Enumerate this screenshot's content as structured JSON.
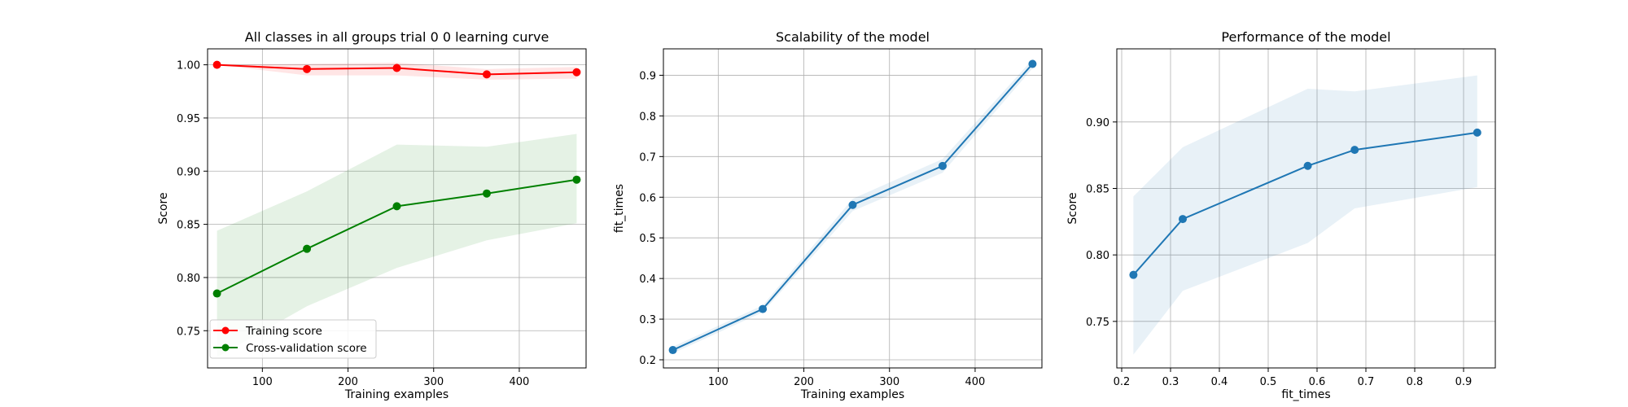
{
  "chart_data": [
    {
      "type": "line",
      "title": "All classes in all groups trial 0 0 learning curve",
      "xlabel": "Training examples",
      "ylabel": "Score",
      "xlim": [
        36,
        478
      ],
      "ylim": [
        0.715,
        1.015
      ],
      "xticks": [
        100,
        200,
        300,
        400
      ],
      "yticks": [
        0.75,
        0.8,
        0.85,
        0.9,
        0.95,
        1.0
      ],
      "ytick_labels": [
        "0.75",
        "0.80",
        "0.85",
        "0.90",
        "0.95",
        "1.00"
      ],
      "grid": true,
      "legend_position": "lower-left",
      "x": [
        47,
        152,
        257,
        362,
        467
      ],
      "series": [
        {
          "name": "Training score",
          "color": "#ff0000",
          "values": [
            1.0,
            0.996,
            0.997,
            0.991,
            0.993
          ],
          "band_lower": [
            1.0,
            0.99,
            0.99,
            0.986,
            0.987
          ],
          "band_upper": [
            1.0,
            1.001,
            1.002,
            0.996,
            0.998
          ]
        },
        {
          "name": "Cross-validation score",
          "color": "#008000",
          "values": [
            0.785,
            0.827,
            0.867,
            0.879,
            0.892
          ],
          "band_lower": [
            0.725,
            0.773,
            0.809,
            0.835,
            0.851
          ],
          "band_upper": [
            0.844,
            0.881,
            0.925,
            0.923,
            0.935
          ]
        }
      ]
    },
    {
      "type": "line",
      "title": "Scalability of the model",
      "xlabel": "Training examples",
      "ylabel": "fit_times",
      "xlim": [
        36,
        478
      ],
      "ylim": [
        0.18,
        0.965
      ],
      "xticks": [
        100,
        200,
        300,
        400
      ],
      "yticks": [
        0.2,
        0.3,
        0.4,
        0.5,
        0.6,
        0.7,
        0.8,
        0.9
      ],
      "ytick_labels": [
        "0.2",
        "0.3",
        "0.4",
        "0.5",
        "0.6",
        "0.7",
        "0.8",
        "0.9"
      ],
      "grid": true,
      "x": [
        47,
        152,
        257,
        362,
        467
      ],
      "series": [
        {
          "color": "#1f77b4",
          "values": [
            0.224,
            0.325,
            0.581,
            0.677,
            0.928
          ],
          "band_lower": [
            0.216,
            0.317,
            0.566,
            0.66,
            0.917
          ],
          "band_upper": [
            0.232,
            0.334,
            0.596,
            0.694,
            0.939
          ]
        }
      ]
    },
    {
      "type": "line",
      "title": "Performance of the model",
      "xlabel": "fit_times",
      "ylabel": "Score",
      "xlim": [
        0.19,
        0.965
      ],
      "ylim": [
        0.715,
        0.955
      ],
      "xticks": [
        0.2,
        0.3,
        0.4,
        0.5,
        0.6,
        0.7,
        0.8,
        0.9
      ],
      "xtick_labels": [
        "0.2",
        "0.3",
        "0.4",
        "0.5",
        "0.6",
        "0.7",
        "0.8",
        "0.9"
      ],
      "yticks": [
        0.75,
        0.8,
        0.85,
        0.9
      ],
      "ytick_labels": [
        "0.75",
        "0.80",
        "0.85",
        "0.90"
      ],
      "grid": true,
      "x": [
        0.224,
        0.325,
        0.581,
        0.677,
        0.928
      ],
      "series": [
        {
          "color": "#1f77b4",
          "values": [
            0.785,
            0.827,
            0.867,
            0.879,
            0.892
          ],
          "band_lower": [
            0.725,
            0.773,
            0.809,
            0.835,
            0.851
          ],
          "band_upper": [
            0.844,
            0.881,
            0.925,
            0.923,
            0.935
          ]
        }
      ]
    }
  ]
}
